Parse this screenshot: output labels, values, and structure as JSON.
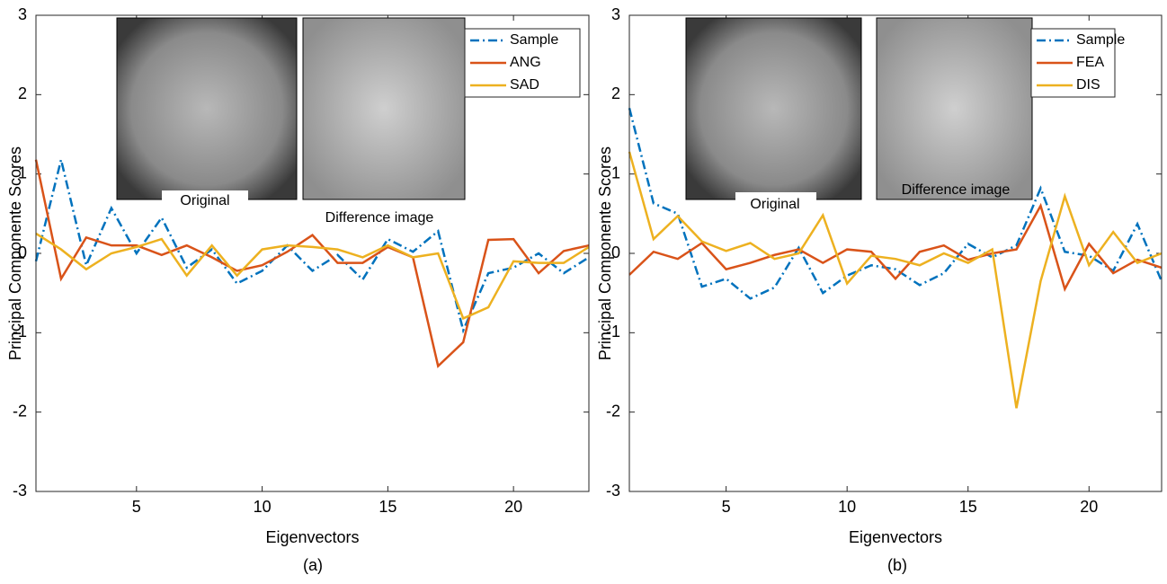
{
  "chart_data": [
    {
      "type": "line",
      "caption": "(a)",
      "xlabel": "Eigenvectors",
      "ylabel": "Principal Componente Scores",
      "annotations": [
        "Original",
        "Difference image"
      ],
      "x": [
        1,
        2,
        3,
        4,
        5,
        6,
        7,
        8,
        9,
        10,
        11,
        12,
        13,
        14,
        15,
        16,
        17,
        18,
        19,
        20,
        21,
        22,
        23
      ],
      "xlim": [
        1,
        23
      ],
      "xticks": [
        5,
        10,
        15,
        20
      ],
      "ylim": [
        -3,
        3
      ],
      "yticks": [
        -3,
        -2,
        -1,
        0,
        1,
        2,
        3
      ],
      "legend": "upper right",
      "series": [
        {
          "name": "Sample",
          "color": "#0072bd",
          "linestyle": "dashdot",
          "values": [
            -0.1,
            1.18,
            -0.15,
            0.57,
            0.0,
            0.45,
            -0.18,
            0.05,
            -0.38,
            -0.22,
            0.1,
            -0.22,
            -0.02,
            -0.33,
            0.18,
            0.02,
            0.28,
            -0.97,
            -0.25,
            -0.18,
            0.0,
            -0.25,
            -0.05
          ]
        },
        {
          "name": "ANG",
          "color": "#d95319",
          "linestyle": "solid",
          "values": [
            1.18,
            -0.32,
            0.2,
            0.1,
            0.1,
            -0.02,
            0.1,
            -0.05,
            -0.22,
            -0.15,
            0.02,
            0.23,
            -0.12,
            -0.12,
            0.08,
            -0.05,
            -1.42,
            -1.12,
            0.17,
            0.18,
            -0.25,
            0.03,
            0.1
          ]
        },
        {
          "name": "SAD",
          "color": "#edb120",
          "linestyle": "solid",
          "values": [
            0.25,
            0.05,
            -0.2,
            0.0,
            0.08,
            0.18,
            -0.28,
            0.1,
            -0.28,
            0.05,
            0.1,
            0.08,
            0.05,
            -0.05,
            0.1,
            -0.05,
            0.0,
            -0.82,
            -0.68,
            -0.1,
            -0.12,
            -0.12,
            0.08
          ]
        }
      ]
    },
    {
      "type": "line",
      "caption": "(b)",
      "xlabel": "Eigenvectors",
      "ylabel": "Principal Componente Scores",
      "annotations": [
        "Original",
        "Difference image"
      ],
      "x": [
        1,
        2,
        3,
        4,
        5,
        6,
        7,
        8,
        9,
        10,
        11,
        12,
        13,
        14,
        15,
        16,
        17,
        18,
        19,
        20,
        21,
        22,
        23
      ],
      "xlim": [
        1,
        23
      ],
      "xticks": [
        5,
        10,
        15,
        20
      ],
      "ylim": [
        -3,
        3
      ],
      "yticks": [
        -3,
        -2,
        -1,
        0,
        1,
        2,
        3
      ],
      "legend": "upper right",
      "series": [
        {
          "name": "Sample",
          "color": "#0072bd",
          "linestyle": "dashdot",
          "values": [
            1.83,
            0.63,
            0.5,
            -0.42,
            -0.32,
            -0.57,
            -0.43,
            0.07,
            -0.5,
            -0.28,
            -0.15,
            -0.2,
            -0.4,
            -0.25,
            0.12,
            -0.05,
            0.1,
            0.82,
            0.02,
            -0.03,
            -0.22,
            0.37,
            -0.35
          ]
        },
        {
          "name": "FEA",
          "color": "#d95319",
          "linestyle": "solid",
          "values": [
            -0.27,
            0.02,
            -0.07,
            0.13,
            -0.2,
            -0.12,
            -0.02,
            0.05,
            -0.12,
            0.05,
            0.02,
            -0.32,
            0.02,
            0.1,
            -0.08,
            0.0,
            0.05,
            0.6,
            -0.45,
            0.12,
            -0.25,
            -0.08,
            -0.18
          ]
        },
        {
          "name": "DIS",
          "color": "#edb120",
          "linestyle": "solid",
          "values": [
            1.28,
            0.18,
            0.47,
            0.15,
            0.03,
            0.13,
            -0.07,
            0.0,
            0.48,
            -0.38,
            -0.03,
            -0.07,
            -0.15,
            0.0,
            -0.12,
            0.05,
            -1.95,
            -0.35,
            0.72,
            -0.15,
            0.27,
            -0.12,
            0.0
          ]
        }
      ]
    }
  ]
}
